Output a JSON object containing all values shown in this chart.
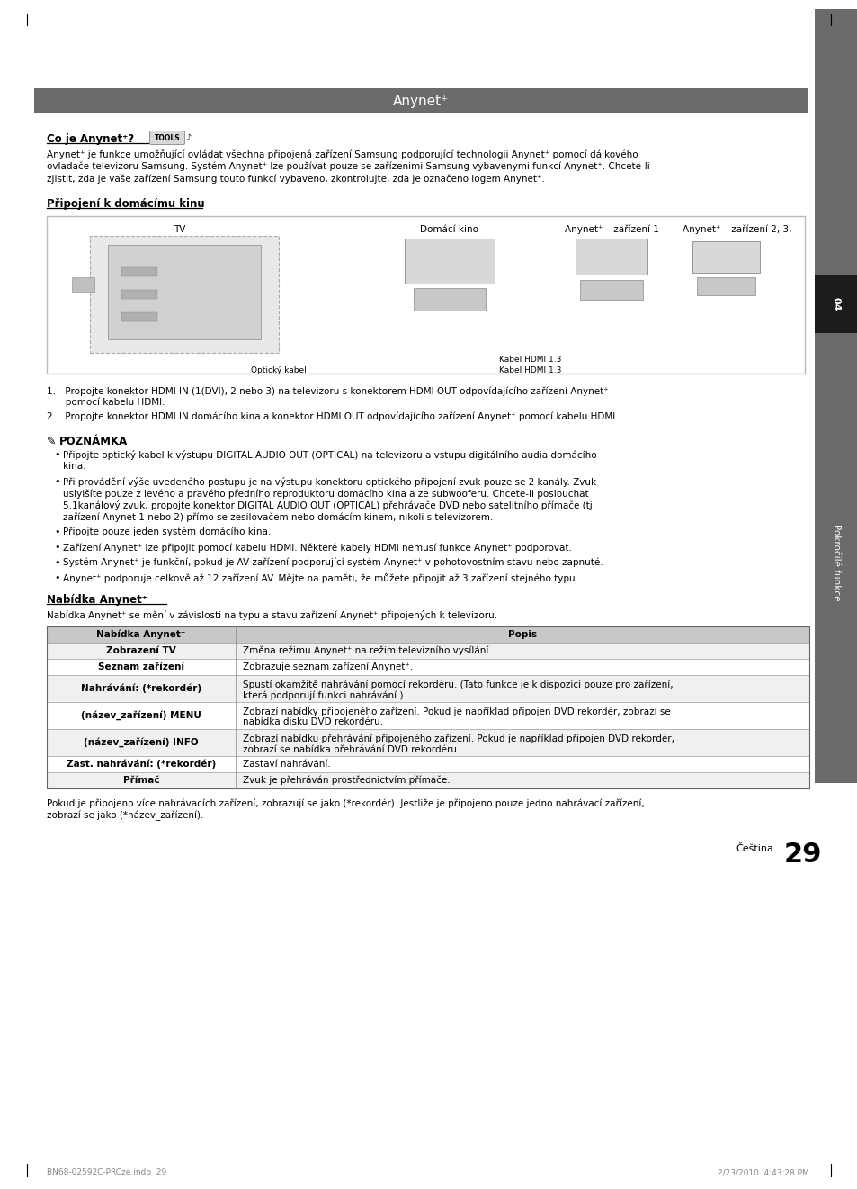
{
  "bg_color": "#ffffff",
  "title_bar_color": "#6b6b6b",
  "title_text": "Anynet⁺",
  "title_text_color": "#ffffff",
  "sidebar_color_top": "#6b6b6b",
  "sidebar_color_mid": "#1a1a1a",
  "sidebar_color_bot": "#6b6b6b",
  "sidebar_num": "04",
  "sidebar_text": "Pokročilé funkce",
  "section1_heading": "Co je Anynet⁺?",
  "section1_tools_text": "TOOLS",
  "section1_body1": "Anynet⁺ je funkce umožňující ovládat všechna připojená zařízení Samsung podporující technologii Anynet⁺ pomocí dálkového",
  "section1_body2": "ovladače televizoru Samsung. Systém Anynet⁺ lze používat pouze se zařízenimi Samsung vybavenymi funkcí Anynet⁺. Chcete-li",
  "section1_body3": "zjistit, zda je vaše zařízení Samsung touto funkcí vybaveno, zkontrolujte, zda je označeno logem Anynet⁺.",
  "section2_heading": "Připojení k domácímu kinu",
  "diag_tv_label": "TV",
  "diag_hk_label": "Domácí kino",
  "diag_dev1_label": "Anynet⁺ – zařízení 1",
  "diag_dev2_label": "Anynet⁺ – zařízení 2, 3,",
  "diag_cable1": "Optický kabel",
  "diag_cable2": "Kabel HDMI 1.3",
  "diag_cable3": "Kabel HDMI 1.3",
  "step1": "1. Propojte konektor HDMI IN (1(DVI), 2 nebo 3) na televizoru s konektorem HDMI OUT odpovídajícího zařízení Anynet⁺",
  "step1b": "  pomocí kabelu HDMI.",
  "step2": "2. Propojte konektor HDMI IN domácího kina a konektor HDMI OUT odpovídajícího zařízení Anynet⁺ pomocí kabelu HDMI.",
  "note_sym": "✎",
  "note_heading": "POZNÁMKA",
  "note1a": "Připojte optický kabel k výstupu DIGITAL AUDIO OUT (OPTICAL) na televizoru a vstupu digitálního audia domácího",
  "note1b": "kina.",
  "note2a": "Při provádění výše uvedeného postupu je na výstupu konektoru optického připojení zvuk pouze se 2 kanály. Zvuk",
  "note2b": "uslyišíte pouze z levého a pravého předního reproduktoru domácího kina a ze subwooferu. Chcete-li poslouchat",
  "note2c": "5.1kanálový zvuk, propojte konektor DIGITAL AUDIO OUT (OPTICAL) přehrávače DVD nebo satelitního přímače (tj.",
  "note2d": "zařízení Anynet 1 nebo 2) přímo se zesilovačem nebo domácím kinem, nikoli s televizorem.",
  "note3": "Připojte pouze jeden systém domácího kina.",
  "note4": "Zařízení Anynet⁺ lze připojit pomocí kabelu HDMI. Některé kabely HDMI nemusí funkce Anynet⁺ podporovat.",
  "note5": "Systém Anynet⁺ je funkční, pokud je AV zařízení podporující systém Anynet⁺ v pohotovostním stavu nebo zapnuté.",
  "note6": "Anynet⁺ podporuje celkově až 12 zařízení AV. Mějte na paměti, že můžete připojit až 3 zařízení stejného typu.",
  "section3_heading": "Nabídka Anynet⁺",
  "section3_intro": "Nabídka Anynet⁺ se mění v závislosti na typu a stavu zařízení Anynet⁺ připojených k televizoru.",
  "table_col1_header": "Nabídka Anynet⁺",
  "table_col2_header": "Popis",
  "table_rows": [
    [
      "Zobrazení TV",
      "Změna režimu Anynet⁺ na režim televizního vysílání.",
      1
    ],
    [
      "Seznam zařízení",
      "Zobrazuje seznam zařízení Anynet⁺.",
      1
    ],
    [
      "Nahrávání: (*rekordér)",
      "Spustí okamžitě nahrávání pomocí rekordéru. (Tato funkce je k dispozici pouze pro zařízení,\nkterá podporují funkci nahrávání.)",
      2
    ],
    [
      "(název_zařízení) MENU",
      "Zobrazí nabídky připojeného zařízení. Pokud je například připojen DVD rekordér, zobrazí se\nnabídka disku DVD rekordéru.",
      2
    ],
    [
      "(název_zařízení) INFO",
      "Zobrazí nabídku přehrávání připojeného zařízení. Pokud je například připojen DVD rekordér,\nzobrazí se nabídka přehrávání DVD rekordéru.",
      2
    ],
    [
      "Zast. nahrávání: (*rekordér)",
      "Zastaví nahrávání.",
      1
    ],
    [
      "Přímač",
      "Zvuk je přehráván prostřednictvím přímače.",
      1
    ]
  ],
  "footer_note1": "Pokud je připojeno více nahrávacích zařízení, zobrazují se jako (*rekordér). Jestliže je připojeno pouze jedno nahrávací zařízení,",
  "footer_note2": "zobrazí se jako (*název_zařízení).",
  "page_lang": "Čeština",
  "page_num": "29",
  "footer_left": "BN68-02592C-PRCze.indb  29",
  "footer_right": "2/23/2010  4:43:28 PM"
}
